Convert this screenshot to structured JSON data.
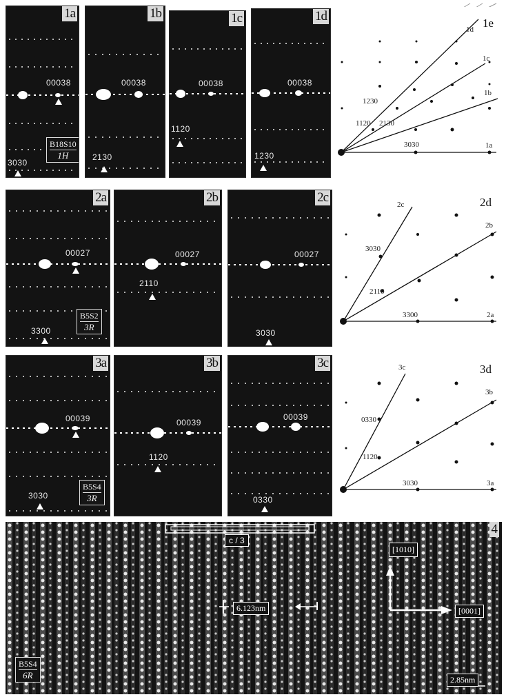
{
  "row1": {
    "panels": [
      {
        "label": "1a",
        "idx_c": "00038",
        "idx_b": "3030",
        "box_formula": "B18S10",
        "box_polytype": "1H"
      },
      {
        "label": "1b",
        "idx_c": "00038",
        "idx_b": "2130"
      },
      {
        "label": "1c",
        "idx_c": "00038",
        "idx_m": "1120"
      },
      {
        "label": "1d",
        "idx_c": "00038",
        "idx_b": "1230"
      }
    ],
    "diagram": {
      "label": "1e",
      "line_labels": [
        "1d",
        "1c",
        "1b",
        "1a"
      ],
      "point_labels": [
        "1230",
        "1120",
        "2130",
        "3030"
      ]
    }
  },
  "row2": {
    "panels": [
      {
        "label": "2a",
        "idx_c": "00027",
        "idx_b": "3300",
        "box_formula": "B5S2",
        "box_polytype": "3R"
      },
      {
        "label": "2b",
        "idx_c": "00027",
        "idx_m": "2110"
      },
      {
        "label": "2c",
        "idx_c": "00027",
        "idx_b": "3030"
      }
    ],
    "diagram": {
      "label": "2d",
      "line_labels": [
        "2c",
        "2b",
        "2a"
      ],
      "point_labels": [
        "3030",
        "2110",
        "3300"
      ]
    }
  },
  "row3": {
    "panels": [
      {
        "label": "3a",
        "idx_c": "00039",
        "idx_b": "3030",
        "box_formula": "B5S4",
        "box_polytype": "3R"
      },
      {
        "label": "3b",
        "idx_c": "00039",
        "idx_m": "1120"
      },
      {
        "label": "3c",
        "idx_c": "00039",
        "idx_b": "0330"
      }
    ],
    "diagram": {
      "label": "3d",
      "line_labels": [
        "3c",
        "3b",
        "3a"
      ],
      "point_labels": [
        "0330",
        "1120",
        "3030"
      ]
    }
  },
  "hrtem": {
    "label": "4",
    "c_label": "c / 3",
    "dir_up": "[1010]",
    "dir_right": "[0001]",
    "spacing": "6.123nm",
    "scale": "2.85nm",
    "box_formula": "B5S4",
    "box_polytype": "6R"
  },
  "colors": {
    "film": "#131313",
    "spot": "#ffffff",
    "paper": "#ffffff"
  }
}
